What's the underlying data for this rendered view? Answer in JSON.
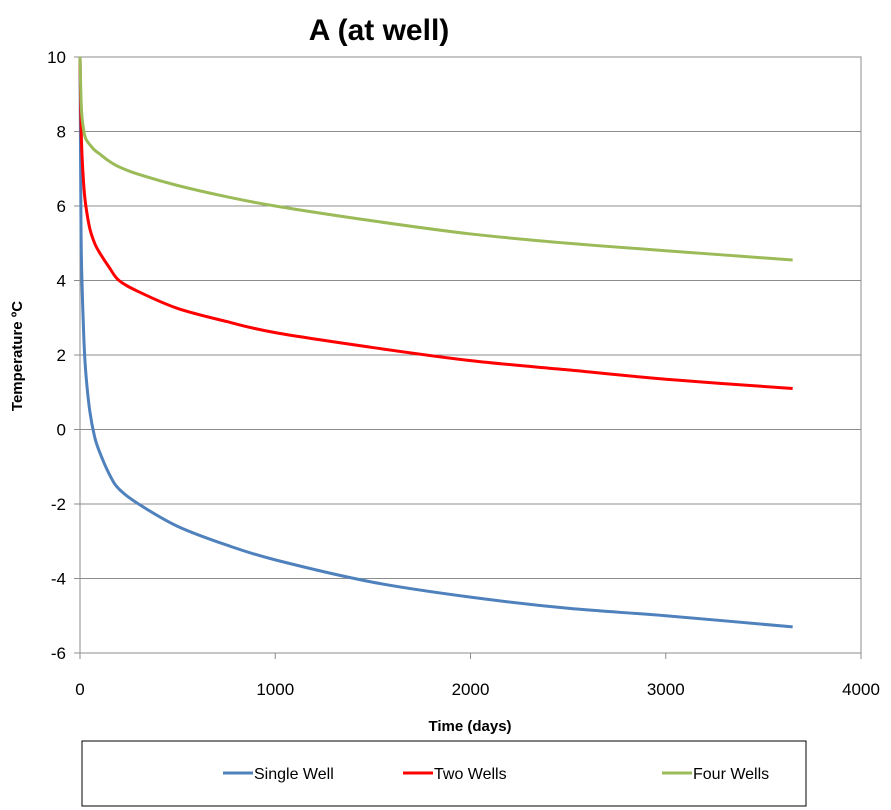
{
  "chart_data": {
    "type": "line",
    "title": "A (at well)",
    "xlabel": "Time (days)",
    "ylabel": "Temperature ºC",
    "xlim": [
      0,
      4000
    ],
    "ylim": [
      -6,
      10
    ],
    "x_ticks": [
      "0",
      "1000",
      "2000",
      "3000",
      "4000"
    ],
    "y_ticks": [
      "10",
      "8",
      "6",
      "4",
      "2",
      "0",
      "-2",
      "-4",
      "-6"
    ],
    "grid": "horizontal",
    "legend_position": "bottom",
    "series": [
      {
        "name": "Single Well",
        "color": "#4F81BD",
        "x": [
          0,
          5,
          10,
          20,
          30,
          50,
          75,
          100,
          150,
          200,
          300,
          500,
          750,
          1000,
          1500,
          2000,
          2500,
          3000,
          3650
        ],
        "y": [
          10,
          5.5,
          4.0,
          2.4,
          1.5,
          0.5,
          -0.2,
          -0.6,
          -1.2,
          -1.6,
          -2.0,
          -2.6,
          -3.1,
          -3.5,
          -4.1,
          -4.5,
          -4.8,
          -5.0,
          -5.3
        ]
      },
      {
        "name": "Two Wells",
        "color": "#FF0000",
        "x": [
          0,
          5,
          10,
          20,
          30,
          50,
          75,
          100,
          150,
          200,
          300,
          500,
          750,
          1000,
          1500,
          2000,
          2500,
          3000,
          3650
        ],
        "y": [
          10,
          8.3,
          7.4,
          6.5,
          6.0,
          5.4,
          5.0,
          4.75,
          4.35,
          4.0,
          3.7,
          3.25,
          2.9,
          2.6,
          2.2,
          1.85,
          1.6,
          1.35,
          1.1
        ]
      },
      {
        "name": "Four Wells",
        "color": "#9BBB59",
        "x": [
          0,
          5,
          10,
          20,
          30,
          50,
          75,
          100,
          150,
          200,
          300,
          500,
          750,
          1000,
          1500,
          2000,
          2500,
          3000,
          3650
        ],
        "y": [
          10,
          8.9,
          8.4,
          8.0,
          7.8,
          7.65,
          7.5,
          7.4,
          7.2,
          7.05,
          6.85,
          6.55,
          6.25,
          6.0,
          5.6,
          5.25,
          5.0,
          4.8,
          4.55
        ]
      }
    ]
  }
}
